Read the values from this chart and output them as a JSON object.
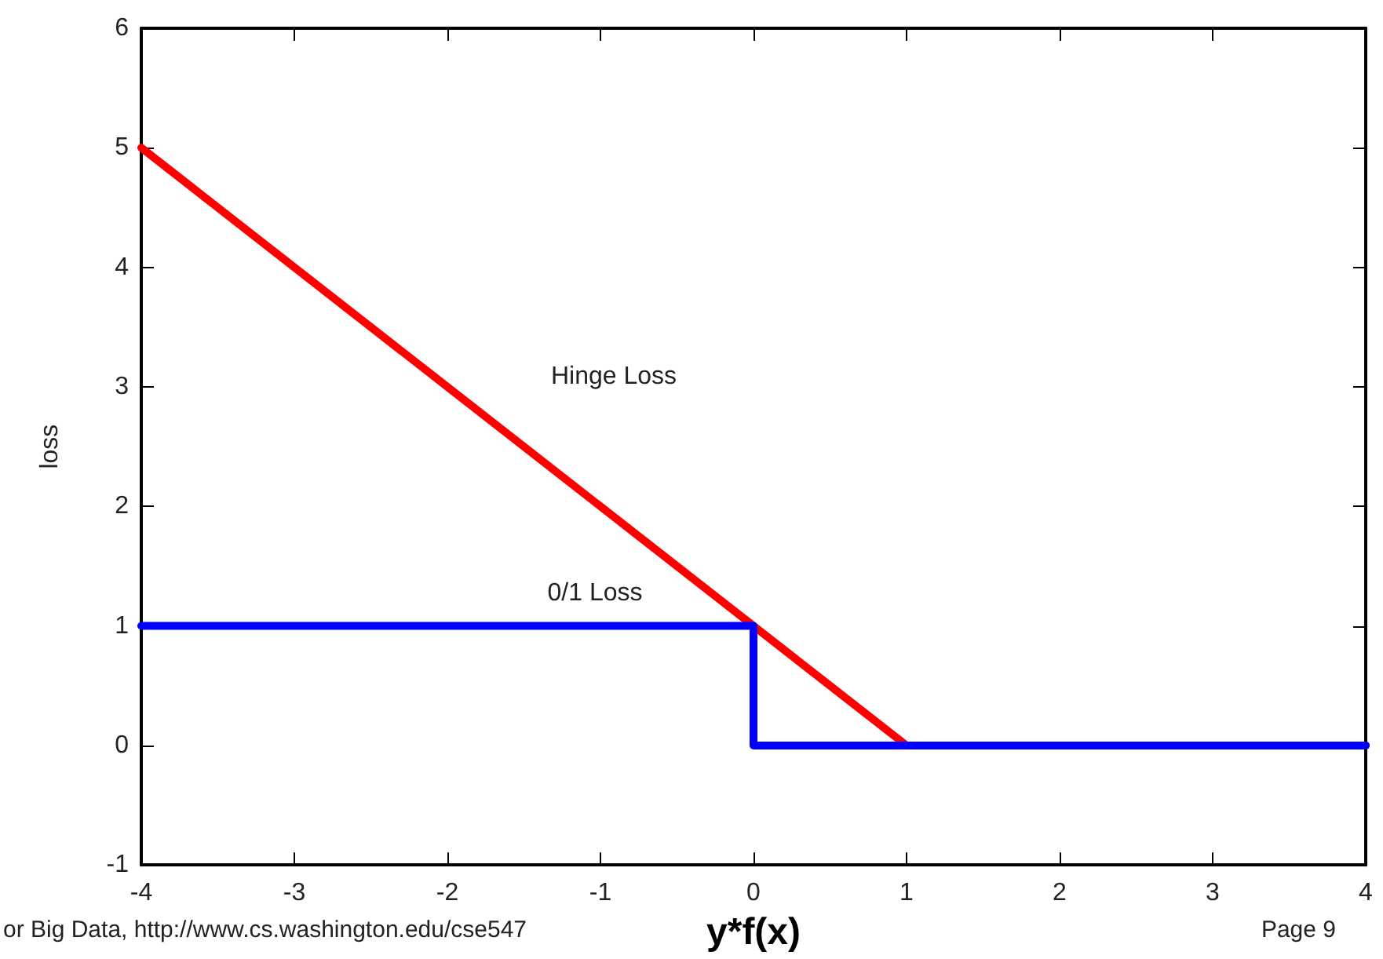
{
  "chart_data": {
    "type": "line",
    "xlabel": "y*f(x)",
    "ylabel": "loss",
    "series": [
      {
        "color": "#ff0000",
        "x": [
          -4,
          1,
          4
        ],
        "values": [
          5,
          0,
          0
        ]
      },
      {
        "color": "#0000ff",
        "x": [
          -4,
          0,
          0,
          4
        ],
        "values": [
          1,
          1,
          0,
          0
        ]
      }
    ],
    "annotations": [
      "Hinge Loss",
      "0/1 Loss",
      "or Big Data, http://www.cs.washington.edu/cse547",
      "Page 9"
    ],
    "xlim": [
      -4,
      4
    ],
    "xticks": [
      -4,
      -3,
      -2,
      -1,
      0,
      1,
      2,
      3,
      4
    ],
    "ylim": [
      -1,
      6
    ],
    "yticks": [
      -1,
      0,
      1,
      2,
      3,
      4,
      5,
      6
    ],
    "grid": false,
    "marker": "none",
    "line_style": "solid"
  }
}
